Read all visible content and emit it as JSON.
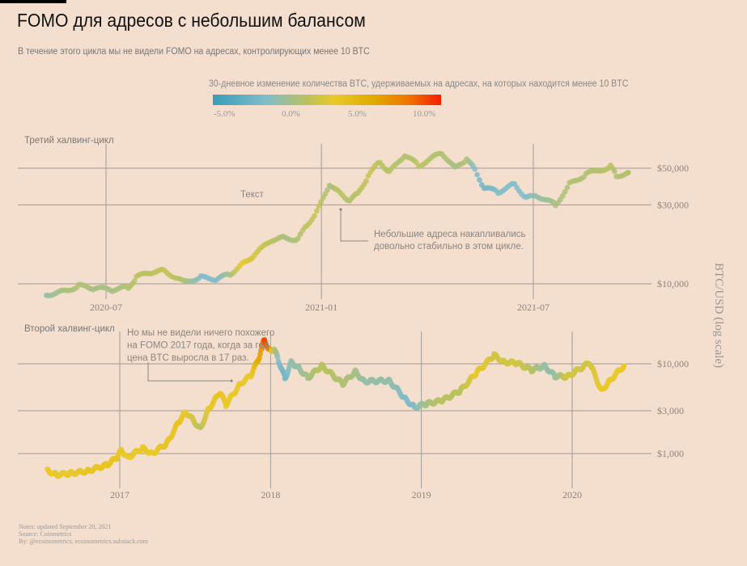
{
  "title": "FOMO для адресов с небольшим балансом",
  "subtitle": "В течение этого цикла мы не видели FOMO на адресах, контролирующих менее 10 BTC",
  "colorbar": {
    "title": "30-дневное изменение количества BTC, удерживаемых на адресах, на которых находится менее 10 BTC",
    "ticks": [
      "-5.0%",
      "0.0%",
      "5.0%",
      "10.0%"
    ],
    "tick_values": [
      -5,
      0,
      5,
      10
    ],
    "range": [
      -6,
      11
    ],
    "stops": [
      [
        -6,
        "#3a9cb8"
      ],
      [
        -2,
        "#82bcca"
      ],
      [
        1,
        "#b9c25e"
      ],
      [
        3,
        "#e9c92a"
      ],
      [
        6,
        "#e0a800"
      ],
      [
        8.5,
        "#ee7700"
      ],
      [
        11,
        "#f41e00"
      ]
    ]
  },
  "footer": {
    "notes": "Notes: updated September 20, 2021",
    "source": "Source: Coinmetrics",
    "by": "By: @ecoinometrics, ecoinometrics.substack.com"
  },
  "chart_data": [
    {
      "type": "scatter",
      "panel_label": "Третий халвинг-цикл",
      "ylabel": "BTC/USD (log scale)",
      "yscale": "log",
      "xticks": [
        "2020-07",
        "2021-01",
        "2021-07"
      ],
      "yticks": [
        {
          "value": 10000,
          "label": "$10,000"
        },
        {
          "value": 30000,
          "label": "$30,000"
        },
        {
          "value": 50000,
          "label": "$50,000"
        }
      ],
      "annotations": [
        "Текст",
        "Небольшие адреса накапливались\nдовольно  стабильно в этом цикле."
      ],
      "points": [
        [
          "2020-05-11",
          8600,
          -1
        ],
        [
          "2020-05-25",
          9000,
          0
        ],
        [
          "2020-06-08",
          9700,
          0.5
        ],
        [
          "2020-06-22",
          9400,
          0
        ],
        [
          "2020-07-06",
          9200,
          0
        ],
        [
          "2020-07-20",
          9500,
          0.5
        ],
        [
          "2020-07-27",
          11000,
          1
        ],
        [
          "2020-08-10",
          11800,
          1
        ],
        [
          "2020-08-20",
          12000,
          1.5
        ],
        [
          "2020-09-05",
          10300,
          0.5
        ],
        [
          "2020-09-20",
          10900,
          -2
        ],
        [
          "2020-10-05",
          10700,
          -2
        ],
        [
          "2020-10-15",
          11500,
          0
        ],
        [
          "2020-10-25",
          13000,
          3
        ],
        [
          "2020-11-05",
          15000,
          2
        ],
        [
          "2020-11-20",
          18500,
          1
        ],
        [
          "2020-12-01",
          19000,
          0
        ],
        [
          "2020-12-12",
          18500,
          0.5
        ],
        [
          "2020-12-20",
          23000,
          1
        ],
        [
          "2020-12-28",
          27000,
          1.5
        ],
        [
          "2021-01-08",
          40000,
          0
        ],
        [
          "2021-01-15",
          36000,
          1
        ],
        [
          "2021-01-25",
          32000,
          0.5
        ],
        [
          "2021-02-01",
          35000,
          1
        ],
        [
          "2021-02-10",
          45000,
          1.5
        ],
        [
          "2021-02-20",
          55000,
          1
        ],
        [
          "2021-02-28",
          47000,
          1
        ],
        [
          "2021-03-13",
          60000,
          0.5
        ],
        [
          "2021-03-25",
          52000,
          1
        ],
        [
          "2021-04-14",
          62000,
          0.5
        ],
        [
          "2021-04-25",
          50000,
          0
        ],
        [
          "2021-05-05",
          57000,
          0.5
        ],
        [
          "2021-05-12",
          49000,
          -2
        ],
        [
          "2021-05-20",
          38000,
          -3
        ],
        [
          "2021-06-01",
          36000,
          -2
        ],
        [
          "2021-06-15",
          40000,
          -2
        ],
        [
          "2021-06-25",
          33000,
          -2
        ],
        [
          "2021-07-05",
          34000,
          -1
        ],
        [
          "2021-07-20",
          30000,
          0
        ],
        [
          "2021-08-01",
          40000,
          0.5
        ],
        [
          "2021-08-15",
          46000,
          0.5
        ],
        [
          "2021-09-05",
          51000,
          1
        ],
        [
          "2021-09-10",
          45000,
          0.5
        ],
        [
          "2021-09-20",
          47000,
          0.5
        ]
      ]
    },
    {
      "type": "scatter",
      "panel_label": "Второй халвинг-цикл",
      "yscale": "log",
      "xticks": [
        "2017",
        "2018",
        "2019",
        "2020"
      ],
      "yticks": [
        {
          "value": 1000,
          "label": "$1,000"
        },
        {
          "value": 3000,
          "label": "$3,000"
        },
        {
          "value": 10000,
          "label": "$10,000"
        }
      ],
      "annotations": [
        "Но мы не видели ничего похожего\nна FOMO 2017 года, когда за год\nцена BTC выросла в 17 раз."
      ],
      "points": [
        [
          "2016-07-10",
          650,
          3
        ],
        [
          "2016-08-01",
          580,
          3
        ],
        [
          "2016-09-01",
          600,
          3
        ],
        [
          "2016-10-15",
          640,
          3.5
        ],
        [
          "2016-12-01",
          750,
          3.5
        ],
        [
          "2016-12-25",
          900,
          3.5
        ],
        [
          "2017-01-05",
          1100,
          3
        ],
        [
          "2017-01-20",
          900,
          3
        ],
        [
          "2017-02-25",
          1150,
          3
        ],
        [
          "2017-03-20",
          1000,
          3
        ],
        [
          "2017-04-25",
          1300,
          3.5
        ],
        [
          "2017-05-25",
          2300,
          3.5
        ],
        [
          "2017-06-10",
          2900,
          3
        ],
        [
          "2017-07-15",
          1900,
          1
        ],
        [
          "2017-08-05",
          3200,
          3
        ],
        [
          "2017-09-01",
          4800,
          3.5
        ],
        [
          "2017-09-15",
          3500,
          3
        ],
        [
          "2017-10-20",
          6000,
          3
        ],
        [
          "2017-11-15",
          7500,
          3
        ],
        [
          "2017-12-05",
          12000,
          6
        ],
        [
          "2017-12-17",
          19000,
          10
        ],
        [
          "2017-12-28",
          14000,
          8
        ],
        [
          "2018-01-10",
          14500,
          1
        ],
        [
          "2018-01-20",
          11000,
          -2
        ],
        [
          "2018-02-05",
          6900,
          -3
        ],
        [
          "2018-02-20",
          10500,
          -1
        ],
        [
          "2018-03-10",
          9000,
          -1
        ],
        [
          "2018-04-01",
          7000,
          0
        ],
        [
          "2018-05-05",
          9500,
          1
        ],
        [
          "2018-06-25",
          6000,
          0.5
        ],
        [
          "2018-07-25",
          8200,
          0
        ],
        [
          "2018-08-15",
          6400,
          -1
        ],
        [
          "2018-10-15",
          6500,
          -1
        ],
        [
          "2018-11-25",
          4000,
          -2
        ],
        [
          "2018-12-15",
          3300,
          -2
        ],
        [
          "2019-01-15",
          3600,
          0
        ],
        [
          "2019-02-20",
          3900,
          1
        ],
        [
          "2019-04-05",
          5000,
          1
        ],
        [
          "2019-05-15",
          8000,
          3
        ],
        [
          "2019-06-26",
          12500,
          2
        ],
        [
          "2019-07-20",
          10500,
          2
        ],
        [
          "2019-08-20",
          10200,
          2
        ],
        [
          "2019-09-25",
          8500,
          1
        ],
        [
          "2019-10-26",
          9500,
          -1
        ],
        [
          "2019-11-20",
          7300,
          -1
        ],
        [
          "2019-12-20",
          7200,
          2
        ],
        [
          "2020-02-12",
          10300,
          2
        ],
        [
          "2020-03-12",
          5000,
          3
        ],
        [
          "2020-04-01",
          6500,
          3
        ],
        [
          "2020-05-05",
          9500,
          3
        ]
      ]
    }
  ]
}
